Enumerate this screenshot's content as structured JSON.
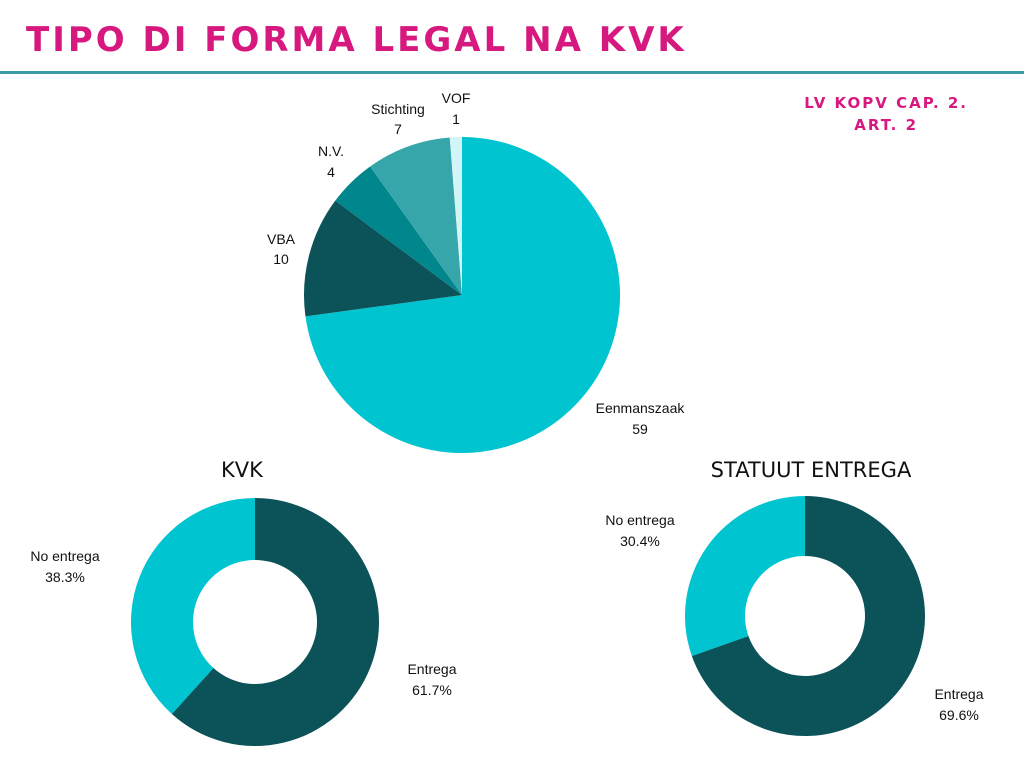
{
  "page": {
    "title": "TIPO DI FORMA LEGAL NA KVK",
    "reference_line1": "LV KOPV CAP. 2.",
    "reference_line2": "ART. 2"
  },
  "colors": {
    "title": "#d6187f",
    "rule": "#3b9aa3"
  },
  "chart_data": [
    {
      "type": "pie",
      "title": "",
      "slices": [
        {
          "label": "Eenmanszaak",
          "value": 59,
          "color": "#00c4cf"
        },
        {
          "label": "VBA",
          "value": 10,
          "color": "#0b5358"
        },
        {
          "label": "N.V.",
          "value": 4,
          "color": "#00878e"
        },
        {
          "label": "Stichting",
          "value": 7,
          "color": "#37a6ab"
        },
        {
          "label": "VOF",
          "value": 1,
          "color": "#d2f6f7"
        }
      ]
    },
    {
      "type": "pie",
      "subtype": "donut",
      "title": "KVK",
      "slices": [
        {
          "label": "Entrega",
          "value": 61.7,
          "display": "61.7%",
          "color": "#0b5358"
        },
        {
          "label": "No entrega",
          "value": 38.3,
          "display": "38.3%",
          "color": "#00c4cf"
        }
      ]
    },
    {
      "type": "pie",
      "subtype": "donut",
      "title": "STATUUT ENTREGA",
      "slices": [
        {
          "label": "Entrega",
          "value": 69.6,
          "display": "69.6%",
          "color": "#0b5358"
        },
        {
          "label": "No entrega",
          "value": 30.4,
          "display": "30.4%",
          "color": "#00c4cf"
        }
      ]
    }
  ]
}
